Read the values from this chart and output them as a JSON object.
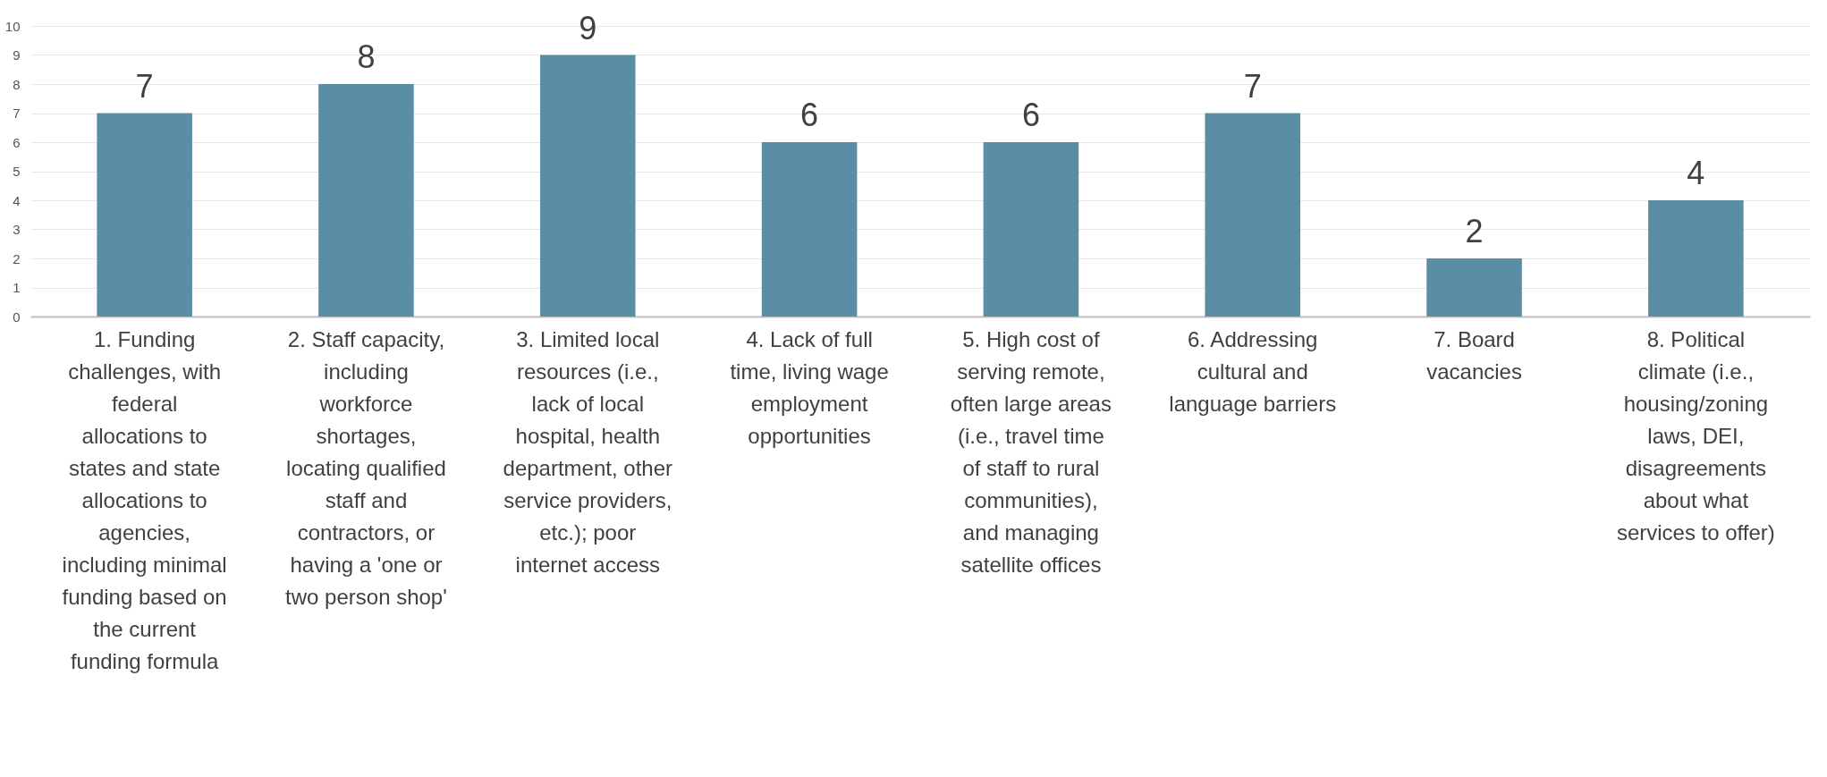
{
  "chart_data": {
    "type": "bar",
    "categories": [
      "1. Funding challenges, with federal allocations to states and state allocations to agencies, including minimal funding based on the current funding formula",
      "2. Staff capacity, including workforce shortages, locating qualified staff and contractors, or having a 'one or two person shop'",
      "3. Limited local resources (i.e., lack of local hospital, health department, other service providers, etc.); poor internet access",
      "4. Lack of full time, living wage employment opportunities",
      "5. High cost of serving remote, often large areas (i.e., travel time of staff to rural communities), and managing satellite offices",
      "6. Addressing cultural and language barriers",
      "7. Board vacancies",
      "8. Political climate (i.e., housing/zoning laws, DEI, disagreements about what services to offer)"
    ],
    "values": [
      7,
      8,
      9,
      6,
      6,
      7,
      2,
      4
    ],
    "color": "#5a8ea6",
    "ylim": [
      0,
      10
    ],
    "yticks": [
      0,
      1,
      2,
      3,
      4,
      5,
      6,
      7,
      8,
      9,
      10
    ],
    "grid": "y",
    "data_labels": true
  }
}
